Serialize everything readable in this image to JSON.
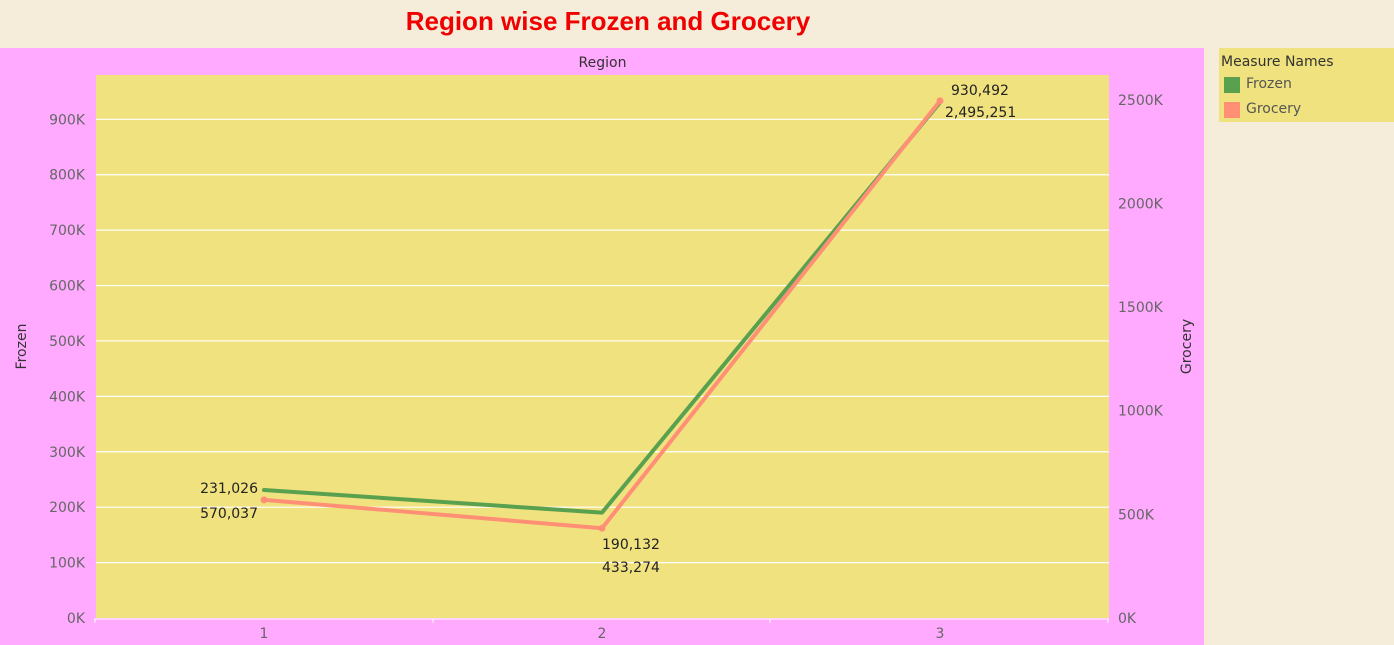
{
  "title": "Region wise Frozen and Grocery",
  "chart_data": {
    "type": "line",
    "title": "Region wise Frozen and Grocery",
    "column_header": "Region",
    "x": [
      "1",
      "2",
      "3"
    ],
    "series": [
      {
        "name": "Frozen",
        "axis": "left",
        "color": "#59a14f",
        "values": [
          231026,
          190132,
          930492
        ],
        "labels": [
          "231,026",
          "190,132",
          "930,492"
        ]
      },
      {
        "name": "Grocery",
        "axis": "right",
        "color": "#ff9076",
        "values": [
          570037,
          433274,
          2495251
        ],
        "labels": [
          "570,037",
          "433,274",
          "2,495,251"
        ]
      }
    ],
    "y_left": {
      "label": "Frozen",
      "range": [
        0,
        980000
      ],
      "ticks": [
        0,
        100000,
        200000,
        300000,
        400000,
        500000,
        600000,
        700000,
        800000,
        900000
      ],
      "tick_labels": [
        "0K",
        "100K",
        "200K",
        "300K",
        "400K",
        "500K",
        "600K",
        "700K",
        "800K",
        "900K"
      ]
    },
    "y_right": {
      "label": "Grocery",
      "range": [
        0,
        2620000
      ],
      "ticks": [
        0,
        500000,
        1000000,
        1500000,
        2000000,
        2500000
      ],
      "tick_labels": [
        "0K",
        "500K",
        "1000K",
        "1500K",
        "2000K",
        "2500K"
      ]
    },
    "grid": true,
    "legend": {
      "title": "Measure Names",
      "position": "right",
      "items": [
        {
          "name": "Frozen",
          "color": "#59a14f"
        },
        {
          "name": "Grocery",
          "color": "#ff9076"
        }
      ]
    },
    "colors": {
      "plot_background": "#f0e27f",
      "pane_background": "#ffaaff",
      "page_background": "#f5ecd9",
      "title": "#f00000"
    }
  }
}
